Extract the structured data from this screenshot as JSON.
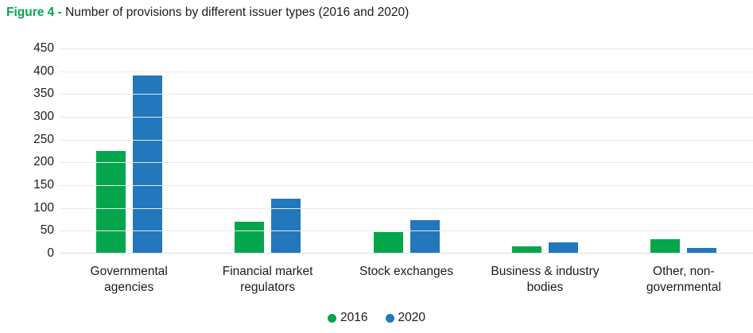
{
  "figure": {
    "label": "Figure 4 -",
    "title": "Number of provisions by different issuer types (2016 and 2020)"
  },
  "colors": {
    "green": "#05a54c",
    "blue": "#2277bd",
    "title_label_green": "#00a551",
    "grid": "#e9e9e9",
    "text": "#1b1b1b"
  },
  "chart_data": {
    "type": "bar",
    "categories": [
      "Governmental agencies",
      "Financial market regulators",
      "Stock exchanges",
      "Business & industry bodies",
      "Other, non-governmental"
    ],
    "series": [
      {
        "name": "2016",
        "color_key": "green",
        "values": [
          225,
          70,
          47,
          15,
          32
        ]
      },
      {
        "name": "2020",
        "color_key": "blue",
        "values": [
          390,
          120,
          73,
          25,
          12
        ]
      }
    ],
    "title": "Number of provisions by different issuer types (2016 and 2020)",
    "xlabel": "",
    "ylabel": "",
    "ylim": [
      0,
      450
    ],
    "yticks": [
      0,
      50,
      100,
      150,
      200,
      250,
      300,
      350,
      400,
      450
    ],
    "grid": true,
    "legend_position": "bottom",
    "legend_entries": [
      "2016",
      "2020"
    ]
  }
}
